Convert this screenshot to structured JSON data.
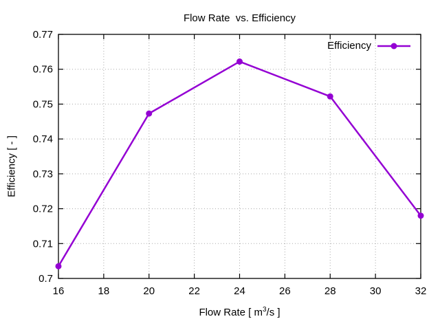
{
  "chart_data": {
    "type": "line",
    "title": "Flow Rate  vs. Efficiency",
    "xlabel": "Flow Rate [ m^3/s ]",
    "xlabel_parts": {
      "prefix": "Flow Rate [ m",
      "sup": "3",
      "suffix": "/s ]"
    },
    "ylabel": "Efficiency [ - ]",
    "xlim": [
      16,
      32
    ],
    "ylim": [
      0.7,
      0.77
    ],
    "xtick_labels": [
      "16",
      "18",
      "20",
      "22",
      "24",
      "26",
      "28",
      "30",
      "32"
    ],
    "ytick_labels": [
      "0.7",
      "0.71",
      "0.72",
      "0.73",
      "0.74",
      "0.75",
      "0.76",
      "0.77"
    ],
    "grid": true,
    "grid_style": "dotted",
    "legend_position": "top-right-inside",
    "series": [
      {
        "name": "Efficiency",
        "color": "#9400d3",
        "marker": "filled-circle",
        "x": [
          16,
          20,
          24,
          28,
          32
        ],
        "y": [
          0.7035,
          0.7473,
          0.7622,
          0.7522,
          0.718
        ]
      }
    ],
    "colors": {
      "line": "#9400d3",
      "grid": "#a8a8a8",
      "axis": "#000000",
      "background": "#ffffff"
    }
  }
}
